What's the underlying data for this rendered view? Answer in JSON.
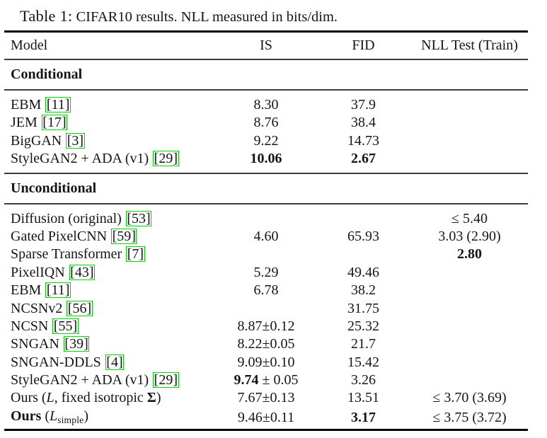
{
  "caption": {
    "label": "Table 1:",
    "text": " CIFAR10 results. NLL measured in bits/dim."
  },
  "colors": {
    "background": "#ffffff",
    "text": "#151515",
    "thick_rule": "#000000",
    "mid_rule": "#3c3c3c",
    "citation_box": "#00d400"
  },
  "table": {
    "columns": [
      "Model",
      "IS",
      "FID",
      "NLL Test (Train)"
    ],
    "sections": [
      {
        "label": "Conditional",
        "rows": [
          {
            "model": [
              {
                "t": "EBM ",
                "s": "p"
              },
              {
                "t": "11",
                "s": "c"
              }
            ],
            "is": [
              {
                "t": "8.30",
                "s": "p"
              }
            ],
            "fid": [
              {
                "t": "37.9",
                "s": "p"
              }
            ],
            "nll": []
          },
          {
            "model": [
              {
                "t": "JEM ",
                "s": "p"
              },
              {
                "t": "17",
                "s": "c"
              }
            ],
            "is": [
              {
                "t": "8.76",
                "s": "p"
              }
            ],
            "fid": [
              {
                "t": "38.4",
                "s": "p"
              }
            ],
            "nll": []
          },
          {
            "model": [
              {
                "t": "BigGAN ",
                "s": "p"
              },
              {
                "t": "3",
                "s": "c"
              }
            ],
            "is": [
              {
                "t": "9.22",
                "s": "p"
              }
            ],
            "fid": [
              {
                "t": "14.73",
                "s": "p"
              }
            ],
            "nll": []
          },
          {
            "model": [
              {
                "t": "StyleGAN2 + ADA (v1) ",
                "s": "p"
              },
              {
                "t": "29",
                "s": "c"
              }
            ],
            "is": [
              {
                "t": "10.06",
                "s": "b"
              }
            ],
            "fid": [
              {
                "t": "2.67",
                "s": "b"
              }
            ],
            "nll": []
          }
        ]
      },
      {
        "label": "Unconditional",
        "rows": [
          {
            "model": [
              {
                "t": "Diffusion (original) ",
                "s": "p"
              },
              {
                "t": "53",
                "s": "c"
              }
            ],
            "is": [],
            "fid": [],
            "nll": [
              {
                "t": "≤ 5.40",
                "s": "p"
              }
            ]
          },
          {
            "model": [
              {
                "t": "Gated PixelCNN ",
                "s": "p"
              },
              {
                "t": "59",
                "s": "c"
              }
            ],
            "is": [
              {
                "t": "4.60",
                "s": "p"
              }
            ],
            "fid": [
              {
                "t": "65.93",
                "s": "p"
              }
            ],
            "nll": [
              {
                "t": "3.03 (2.90)",
                "s": "p"
              }
            ]
          },
          {
            "model": [
              {
                "t": "Sparse Transformer ",
                "s": "p"
              },
              {
                "t": "7",
                "s": "c"
              }
            ],
            "is": [],
            "fid": [],
            "nll": [
              {
                "t": "2.80",
                "s": "b"
              }
            ]
          },
          {
            "model": [
              {
                "t": "PixelIQN ",
                "s": "p"
              },
              {
                "t": "43",
                "s": "c"
              }
            ],
            "is": [
              {
                "t": "5.29",
                "s": "p"
              }
            ],
            "fid": [
              {
                "t": "49.46",
                "s": "p"
              }
            ],
            "nll": []
          },
          {
            "model": [
              {
                "t": "EBM ",
                "s": "p"
              },
              {
                "t": "11",
                "s": "c"
              }
            ],
            "is": [
              {
                "t": "6.78",
                "s": "p"
              }
            ],
            "fid": [
              {
                "t": "38.2",
                "s": "p"
              }
            ],
            "nll": []
          },
          {
            "model": [
              {
                "t": "NCSNv2 ",
                "s": "p"
              },
              {
                "t": "56",
                "s": "c"
              }
            ],
            "is": [],
            "fid": [
              {
                "t": "31.75",
                "s": "p"
              }
            ],
            "nll": []
          },
          {
            "model": [
              {
                "t": "NCSN ",
                "s": "p"
              },
              {
                "t": "55",
                "s": "c"
              }
            ],
            "is": [
              {
                "t": "8.87±0.12",
                "s": "p"
              }
            ],
            "fid": [
              {
                "t": "25.32",
                "s": "p"
              }
            ],
            "nll": []
          },
          {
            "model": [
              {
                "t": "SNGAN ",
                "s": "p"
              },
              {
                "t": "39",
                "s": "c"
              }
            ],
            "is": [
              {
                "t": "8.22±0.05",
                "s": "p"
              }
            ],
            "fid": [
              {
                "t": "21.7",
                "s": "p"
              }
            ],
            "nll": []
          },
          {
            "model": [
              {
                "t": "SNGAN-DDLS ",
                "s": "p"
              },
              {
                "t": "4",
                "s": "c"
              }
            ],
            "is": [
              {
                "t": "9.09±0.10",
                "s": "p"
              }
            ],
            "fid": [
              {
                "t": "15.42",
                "s": "p"
              }
            ],
            "nll": []
          },
          {
            "model": [
              {
                "t": "StyleGAN2 + ADA (v1) ",
                "s": "p"
              },
              {
                "t": "29",
                "s": "c"
              }
            ],
            "is": [
              {
                "t": "9.74",
                "s": "b"
              },
              {
                "t": " ± 0.05",
                "s": "p"
              }
            ],
            "fid": [
              {
                "t": "3.26",
                "s": "p"
              }
            ],
            "nll": []
          },
          {
            "model": [
              {
                "t": "Ours (",
                "s": "p"
              },
              {
                "t": "L",
                "s": "i"
              },
              {
                "t": ", fixed isotropic ",
                "s": "p"
              },
              {
                "t": "Σ",
                "s": "b"
              },
              {
                "t": ")",
                "s": "p"
              }
            ],
            "is": [
              {
                "t": "7.67±0.13",
                "s": "p"
              }
            ],
            "fid": [
              {
                "t": "13.51",
                "s": "p"
              }
            ],
            "nll": [
              {
                "t": "≤ 3.70 (3.69)",
                "s": "p"
              }
            ]
          },
          {
            "model": [
              {
                "t": "Ours",
                "s": "b"
              },
              {
                "t": " (",
                "s": "p"
              },
              {
                "t": "L",
                "s": "i"
              },
              {
                "t": "simple",
                "s": "sub"
              },
              {
                "t": ")",
                "s": "p"
              }
            ],
            "is": [
              {
                "t": "9.46±0.11",
                "s": "p"
              }
            ],
            "fid": [
              {
                "t": "3.17",
                "s": "b"
              }
            ],
            "nll": [
              {
                "t": "≤ 3.75 (3.72)",
                "s": "p"
              }
            ]
          }
        ]
      }
    ]
  }
}
